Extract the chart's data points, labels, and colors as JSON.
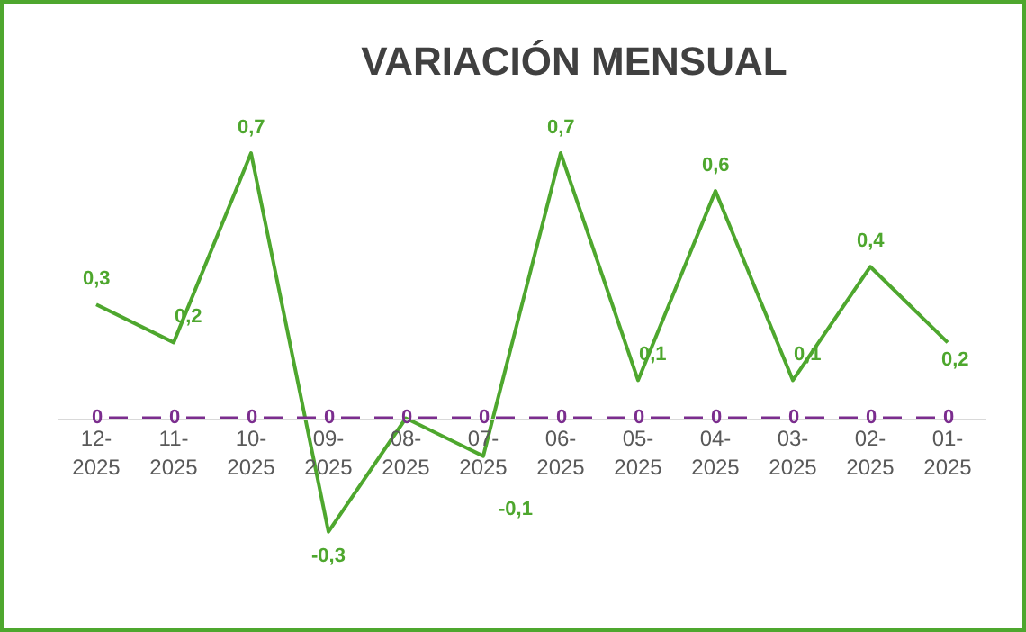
{
  "chart_data": {
    "type": "line",
    "title": "VARIACIÓN MENSUAL",
    "categories": [
      "12-2025",
      "11-2025",
      "10-2025",
      "09-2025",
      "08-2025",
      "07-2025",
      "06-2025",
      "05-2025",
      "04-2025",
      "03-2025",
      "02-2025",
      "01-2025"
    ],
    "series": [
      {
        "color": "#4ea72e",
        "line_style": "solid",
        "values": [
          0.3,
          0.2,
          0.7,
          -0.3,
          0,
          -0.1,
          0.7,
          0.1,
          0.6,
          0.1,
          0.4,
          0.2
        ],
        "value_labels": [
          "0,3",
          "0,2",
          "0,7",
          "-0,3",
          null,
          "-0,1",
          "0,7",
          "0,1",
          "0,6",
          "0,1",
          "0,4",
          "0,2"
        ]
      },
      {
        "color": "#7b2d8e",
        "line_style": "dashed",
        "values": [
          0,
          0,
          0,
          0,
          0,
          0,
          0,
          0,
          0,
          0,
          0,
          0
        ],
        "value_labels": [
          "0",
          "0",
          "0",
          "0",
          "0",
          "0",
          "0",
          "0",
          "0",
          "0",
          "0",
          "0"
        ]
      }
    ],
    "marker": "none",
    "grid": false
  }
}
